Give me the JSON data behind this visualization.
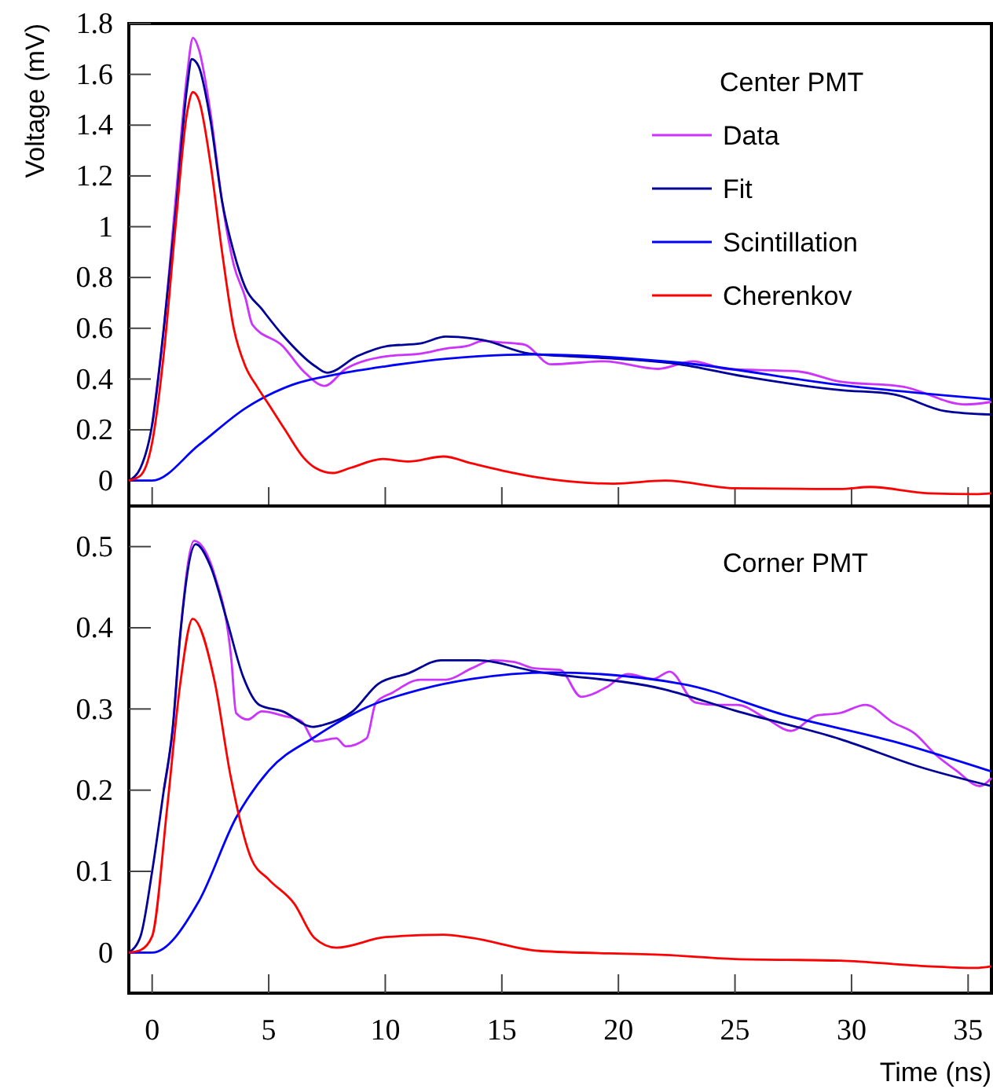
{
  "chart_data": [
    {
      "type": "line",
      "ylabel": "Voltage (mV)",
      "legend_title": "Center PMT",
      "legend": "top right",
      "tick_labels": "y",
      "xlim": [
        -1,
        36
      ],
      "xticks": [
        0,
        5,
        10,
        15,
        20,
        25,
        30,
        35
      ],
      "ylim": [
        -0.1,
        1.8
      ],
      "yticks": [
        0,
        0.2,
        0.4,
        0.6,
        0.8,
        1,
        1.2,
        1.4,
        1.6,
        1.8
      ],
      "series": [
        {
          "name": "Data",
          "color": "#cc33ff",
          "x": [
            0,
            0.5,
            1,
            1.5,
            1.75,
            2,
            2.5,
            3,
            3.5,
            4,
            4.3,
            5.6,
            6.5,
            7.4,
            8.3,
            10.1,
            11.5,
            12.6,
            13.5,
            14.2,
            14.9,
            15.6,
            16,
            17.1,
            19.4,
            21.7,
            23.2,
            24.6,
            27.7,
            29.5,
            32.2,
            34.9,
            36
          ],
          "values": [
            0.22,
            0.6,
            1.1,
            1.6,
            1.744,
            1.7,
            1.45,
            1.1,
            0.85,
            0.72,
            0.614,
            0.53,
            0.43,
            0.373,
            0.44,
            0.49,
            0.5,
            0.52,
            0.53,
            0.55,
            0.545,
            0.54,
            0.535,
            0.458,
            0.47,
            0.44,
            0.47,
            0.44,
            0.43,
            0.39,
            0.37,
            0.3,
            0.31
          ]
        },
        {
          "name": "Fit",
          "color": "#000099",
          "x": [
            -1,
            -0.5,
            0,
            0.5,
            1,
            1.5,
            1.7,
            2,
            2.5,
            3,
            3.5,
            4,
            4.7,
            5.6,
            7,
            7.5,
            8.8,
            10.1,
            11.5,
            12.6,
            13.7,
            14.2,
            16.2,
            16.6,
            22.5,
            25.4,
            29.5,
            31.8,
            34,
            36
          ],
          "values": [
            0,
            0.05,
            0.22,
            0.6,
            1.05,
            1.55,
            1.66,
            1.63,
            1.42,
            1.1,
            0.9,
            0.76,
            0.676,
            0.573,
            0.45,
            0.425,
            0.49,
            0.53,
            0.54,
            0.567,
            0.56,
            0.553,
            0.5,
            0.497,
            0.46,
            0.41,
            0.357,
            0.34,
            0.274,
            0.26
          ]
        },
        {
          "name": "Scintillation",
          "color": "#0000ff",
          "x": [
            -1,
            0,
            2,
            4,
            6,
            8,
            10,
            12.6,
            14,
            16.4,
            22.7,
            29.5,
            36
          ],
          "values": [
            0,
            0,
            0.14,
            0.285,
            0.377,
            0.42,
            0.45,
            0.48,
            0.49,
            0.497,
            0.464,
            0.377,
            0.32
          ]
        },
        {
          "name": "Cherenkov",
          "color": "#ff0000",
          "x": [
            -1,
            -0.5,
            0,
            0.5,
            1,
            1.5,
            1.75,
            2,
            2.5,
            3,
            3.5,
            4,
            4.5,
            5,
            5.7,
            6.5,
            7,
            7.75,
            8.5,
            9.9,
            11,
            12.5,
            13.7,
            15,
            16.6,
            19.8,
            22,
            25,
            29.5,
            30.8,
            33.3,
            35.3,
            36
          ],
          "values": [
            0,
            0.02,
            0.15,
            0.5,
            1.0,
            1.45,
            1.53,
            1.5,
            1.25,
            0.9,
            0.6,
            0.45,
            0.37,
            0.3,
            0.2,
            0.09,
            0.05,
            0.03,
            0.05,
            0.085,
            0.075,
            0.095,
            0.068,
            0.04,
            0.012,
            -0.012,
            0,
            -0.03,
            -0.033,
            -0.025,
            -0.05,
            -0.053,
            -0.05
          ]
        }
      ]
    },
    {
      "type": "line",
      "xlabel": "Time (ns)",
      "annotations": [
        "Corner PMT"
      ],
      "xlim": [
        -1,
        36
      ],
      "xticks": [
        0,
        5,
        10,
        15,
        20,
        25,
        30,
        35
      ],
      "ylim": [
        -0.05,
        0.55
      ],
      "yticks": [
        0,
        0.1,
        0.2,
        0.3,
        0.4,
        0.5
      ],
      "series": [
        {
          "color": "#cc33ff",
          "x": [
            0.5,
            0.9,
            1.2,
            1.8,
            2.7,
            3.4,
            3.6,
            4.1,
            4.7,
            5.7,
            6.4,
            7,
            7.9,
            8.3,
            9.2,
            9.6,
            10.3,
            11.5,
            12.6,
            13.7,
            14.6,
            15.5,
            16.4,
            17.5,
            18.4,
            19.5,
            20.4,
            21.5,
            22.2,
            23.3,
            24.2,
            25.1,
            26.3,
            27.4,
            28.5,
            29.5,
            30.6,
            31.8,
            32.7,
            33.6,
            34.5,
            35.5,
            36
          ],
          "values": [
            0.2,
            0.28,
            0.39,
            0.507,
            0.463,
            0.36,
            0.295,
            0.287,
            0.297,
            0.291,
            0.285,
            0.26,
            0.264,
            0.254,
            0.264,
            0.308,
            0.32,
            0.336,
            0.336,
            0.35,
            0.36,
            0.358,
            0.35,
            0.348,
            0.315,
            0.327,
            0.343,
            0.337,
            0.346,
            0.308,
            0.305,
            0.305,
            0.289,
            0.273,
            0.292,
            0.295,
            0.305,
            0.283,
            0.27,
            0.244,
            0.224,
            0.205,
            0.215
          ]
        },
        {
          "color": "#000099",
          "x": [
            -1,
            -0.5,
            0,
            0.5,
            0.88,
            1.2,
            1.87,
            2.5,
            3.2,
            3.9,
            4.6,
            5.6,
            6.9,
            7.3,
            8.6,
            9.7,
            11,
            12.4,
            14,
            16.3,
            22,
            25,
            29.5,
            33,
            36
          ],
          "values": [
            0,
            0.02,
            0.1,
            0.2,
            0.276,
            0.39,
            0.503,
            0.476,
            0.41,
            0.34,
            0.305,
            0.297,
            0.278,
            0.28,
            0.297,
            0.331,
            0.344,
            0.36,
            0.36,
            0.347,
            0.324,
            0.298,
            0.263,
            0.228,
            0.205
          ]
        },
        {
          "color": "#0000ff",
          "x": [
            -1,
            0,
            2,
            3.6,
            5,
            7,
            9.2,
            11.5,
            13.7,
            17.1,
            22.7,
            27.2,
            31.8,
            36
          ],
          "values": [
            0,
            0,
            0.063,
            0.166,
            0.224,
            0.266,
            0.302,
            0.324,
            0.337,
            0.345,
            0.331,
            0.292,
            0.26,
            0.223
          ]
        },
        {
          "color": "#ff0000",
          "x": [
            -1,
            -0.5,
            0,
            0.65,
            1.2,
            1.74,
            2.68,
            3.36,
            4.26,
            5,
            6.1,
            6.96,
            7.9,
            10,
            12.5,
            13.7,
            16.6,
            22,
            25,
            29.5,
            33.3,
            35.3,
            36
          ],
          "values": [
            0,
            0.003,
            0.02,
            0.18,
            0.33,
            0.411,
            0.334,
            0.218,
            0.115,
            0.09,
            0.06,
            0.018,
            0.006,
            0.019,
            0.022,
            0.018,
            0.002,
            -0.003,
            -0.008,
            -0.01,
            -0.017,
            -0.019,
            -0.017
          ]
        }
      ]
    }
  ]
}
